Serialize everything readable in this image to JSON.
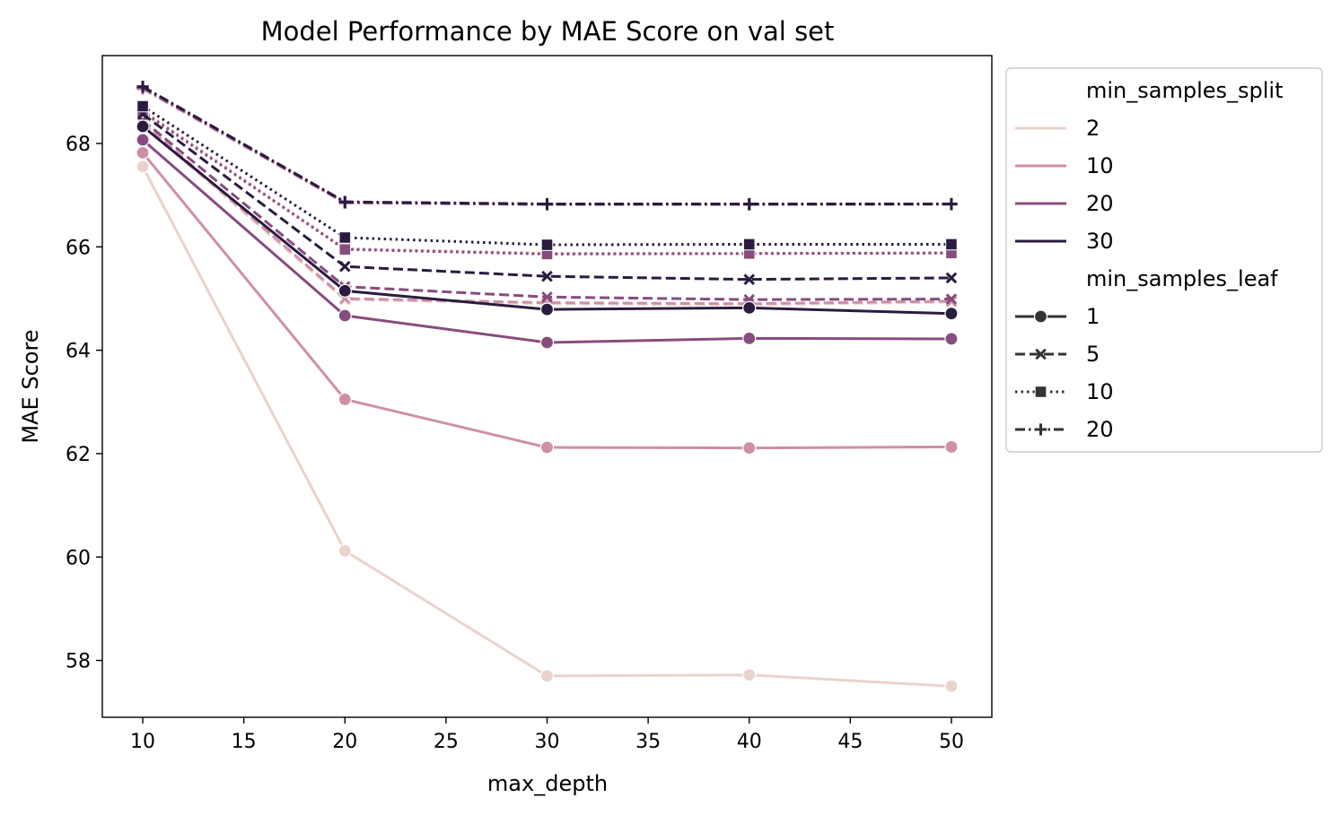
{
  "chart_data": {
    "type": "line",
    "title": "Model Performance by MAE Score on val set",
    "xlabel": "max_depth",
    "ylabel": "MAE Score",
    "xlim": [
      8,
      52
    ],
    "ylim": [
      56.9,
      69.7
    ],
    "xticks": [
      10,
      15,
      20,
      25,
      30,
      35,
      40,
      45,
      50
    ],
    "yticks": [
      58,
      60,
      62,
      64,
      66,
      68
    ],
    "grid": false,
    "legend_position": "outside-right",
    "x": [
      10,
      20,
      30,
      40,
      50
    ],
    "legend": {
      "hue_title": "min_samples_split",
      "hue_items": [
        {
          "label": "2",
          "color": "#ead3cd"
        },
        {
          "label": "10",
          "color": "#cf8fa8"
        },
        {
          "label": "20",
          "color": "#874c7e"
        },
        {
          "label": "30",
          "color": "#2a1b3f"
        }
      ],
      "style_title": "min_samples_leaf",
      "style_items": [
        {
          "label": "1",
          "marker": "circle",
          "dash": "solid"
        },
        {
          "label": "5",
          "marker": "x",
          "dash": "dashed"
        },
        {
          "label": "10",
          "marker": "square",
          "dash": "dotted"
        },
        {
          "label": "20",
          "marker": "plus",
          "dash": "dashdot"
        }
      ]
    },
    "series": [
      {
        "split": "2",
        "leaf": "1",
        "values": [
          67.55,
          60.12,
          57.7,
          57.72,
          57.5
        ]
      },
      {
        "split": "2",
        "leaf": "5",
        "values": [
          68.35,
          64.98,
          64.9,
          64.88,
          64.93
        ]
      },
      {
        "split": "2",
        "leaf": "10",
        "values": [
          68.65,
          65.97,
          65.88,
          65.88,
          65.89
        ]
      },
      {
        "split": "2",
        "leaf": "20",
        "values": [
          69.05,
          66.85,
          66.82,
          66.82,
          66.82
        ]
      },
      {
        "split": "10",
        "leaf": "1",
        "values": [
          67.82,
          63.05,
          62.12,
          62.11,
          62.13
        ]
      },
      {
        "split": "10",
        "leaf": "5",
        "values": [
          68.4,
          65.0,
          64.92,
          64.9,
          64.95
        ]
      },
      {
        "split": "10",
        "leaf": "10",
        "values": [
          68.6,
          65.96,
          65.87,
          65.87,
          65.88
        ]
      },
      {
        "split": "10",
        "leaf": "20",
        "values": [
          69.06,
          66.85,
          66.82,
          66.82,
          66.82
        ]
      },
      {
        "split": "20",
        "leaf": "1",
        "values": [
          68.07,
          64.67,
          64.15,
          64.23,
          64.22
        ]
      },
      {
        "split": "20",
        "leaf": "5",
        "values": [
          68.45,
          65.23,
          65.03,
          64.98,
          64.99
        ]
      },
      {
        "split": "20",
        "leaf": "10",
        "values": [
          68.62,
          65.95,
          65.86,
          65.87,
          65.88
        ]
      },
      {
        "split": "20",
        "leaf": "20",
        "values": [
          69.08,
          66.86,
          66.82,
          66.82,
          66.83
        ]
      },
      {
        "split": "30",
        "leaf": "1",
        "values": [
          68.33,
          65.15,
          64.79,
          64.82,
          64.71
        ]
      },
      {
        "split": "30",
        "leaf": "5",
        "values": [
          68.57,
          65.62,
          65.43,
          65.37,
          65.4
        ]
      },
      {
        "split": "30",
        "leaf": "10",
        "values": [
          68.72,
          66.18,
          66.04,
          66.05,
          66.05
        ]
      },
      {
        "split": "30",
        "leaf": "20",
        "values": [
          69.1,
          66.87,
          66.83,
          66.83,
          66.83
        ]
      }
    ]
  }
}
